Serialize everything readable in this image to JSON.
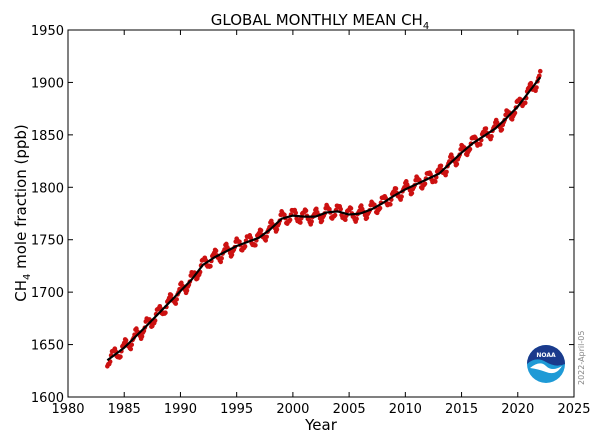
{
  "chart_data": {
    "type": "line",
    "title_main": "GLOBAL MONTHLY MEAN CH",
    "title_sub": "4",
    "xlabel": "Year",
    "ylabel_pre": "CH",
    "ylabel_sub": "4",
    "ylabel_post": " mole fraction (ppb)",
    "xlim": [
      1980,
      2025
    ],
    "ylim": [
      1600,
      1950
    ],
    "xticks": [
      1980,
      1985,
      1990,
      1995,
      2000,
      2005,
      2010,
      2015,
      2020,
      2025
    ],
    "yticks": [
      1600,
      1650,
      1700,
      1750,
      1800,
      1850,
      1900,
      1950
    ],
    "legend": "none",
    "grid": false,
    "series": [
      {
        "name": "Monthly mean (red points)",
        "color": "#cc1111",
        "style": "markers",
        "seasonal_amplitude_ppb": 6
      },
      {
        "name": "Deseasonalized trend (black line)",
        "color": "#000000",
        "style": "line",
        "x": [
          1983.5,
          1985,
          1987,
          1989,
          1991,
          1992,
          1993,
          1995,
          1997,
          1998,
          1999,
          2000,
          2001,
          2002,
          2003,
          2004,
          2005,
          2006,
          2007,
          2008,
          2009,
          2010,
          2011,
          2012,
          2013,
          2014,
          2015,
          2016,
          2017,
          2018,
          2019,
          2020,
          2021,
          2022
        ],
        "values": [
          1635,
          1647,
          1668,
          1690,
          1712,
          1726,
          1733,
          1744,
          1752,
          1760,
          1770,
          1773,
          1772,
          1772,
          1776,
          1777,
          1774,
          1775,
          1779,
          1785,
          1792,
          1798,
          1803,
          1808,
          1813,
          1823,
          1833,
          1842,
          1849,
          1856,
          1866,
          1877,
          1891,
          1905
        ]
      }
    ]
  },
  "date_stamp": "2022-April-05",
  "logo_text": "NOAA",
  "colors": {
    "points": "#cc1111",
    "trend": "#000000",
    "noaa_dark": "#1b3a8c",
    "noaa_light": "#1e9ad6"
  }
}
